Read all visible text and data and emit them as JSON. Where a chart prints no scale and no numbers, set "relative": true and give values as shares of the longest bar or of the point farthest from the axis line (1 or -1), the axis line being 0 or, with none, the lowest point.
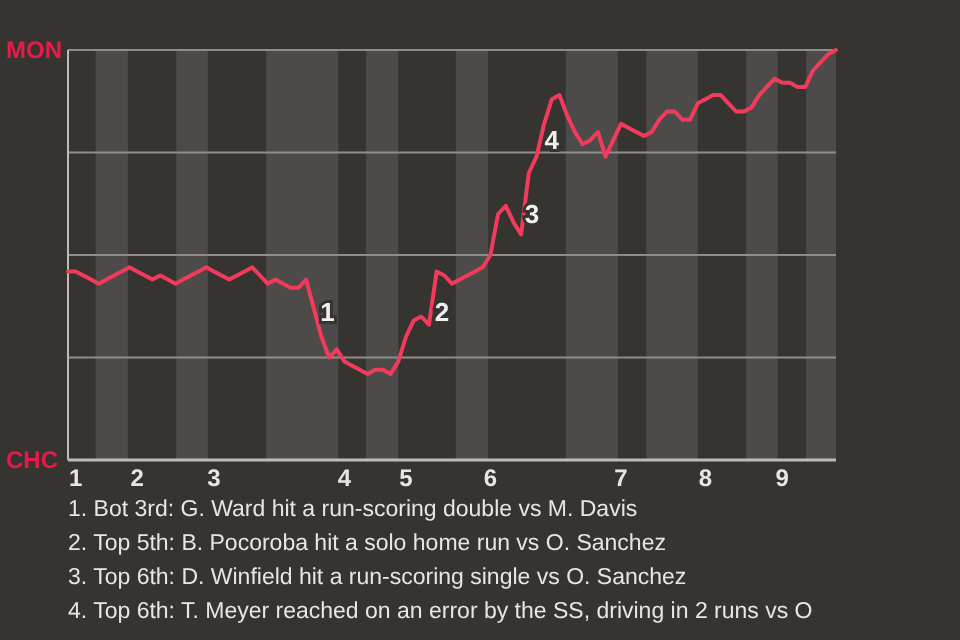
{
  "chart_data": {
    "type": "line",
    "relative": true,
    "categories": [
      null,
      "1",
      null,
      null,
      null,
      null,
      null,
      null,
      null,
      "2",
      null,
      null,
      null,
      null,
      null,
      null,
      null,
      null,
      null,
      "3",
      null,
      null,
      null,
      null,
      null,
      null,
      null,
      null,
      null,
      null,
      null,
      null,
      null,
      null,
      null,
      null,
      "4",
      null,
      null,
      null,
      null,
      null,
      null,
      null,
      "5",
      null,
      null,
      null,
      null,
      null,
      null,
      null,
      null,
      null,
      null,
      "6",
      null,
      null,
      null,
      null,
      null,
      null,
      null,
      null,
      null,
      null,
      null,
      null,
      null,
      null,
      null,
      null,
      "7",
      null,
      null,
      null,
      null,
      null,
      null,
      null,
      null,
      null,
      null,
      "8",
      null,
      null,
      null,
      null,
      null,
      null,
      null,
      null,
      null,
      "9",
      null,
      null,
      null,
      null,
      null,
      null,
      null
    ],
    "grid": "y",
    "marker": "none",
    "line_style": "solid",
    "series": [
      {
        "color": "#f23a5c",
        "values": [
          0.46,
          0.46,
          0.45,
          0.44,
          0.43,
          0.44,
          0.45,
          0.46,
          0.47,
          0.46,
          0.45,
          0.44,
          0.45,
          0.44,
          0.43,
          0.44,
          0.45,
          0.46,
          0.47,
          0.46,
          0.45,
          0.44,
          0.45,
          0.46,
          0.47,
          0.45,
          0.43,
          0.44,
          0.43,
          0.42,
          0.42,
          0.44,
          0.37,
          0.3,
          0.25,
          0.27,
          0.24,
          0.23,
          0.22,
          0.21,
          0.22,
          0.22,
          0.21,
          0.24,
          0.3,
          0.34,
          0.35,
          0.33,
          0.46,
          0.45,
          0.43,
          0.44,
          0.45,
          0.46,
          0.47,
          0.5,
          0.6,
          0.62,
          0.58,
          0.55,
          0.7,
          0.74,
          0.82,
          0.88,
          0.89,
          0.84,
          0.8,
          0.77,
          0.78,
          0.8,
          0.74,
          0.78,
          0.82,
          0.81,
          0.8,
          0.79,
          0.8,
          0.83,
          0.85,
          0.85,
          0.83,
          0.83,
          0.87,
          0.88,
          0.89,
          0.89,
          0.87,
          0.85,
          0.85,
          0.86,
          0.89,
          0.91,
          0.93,
          0.92,
          0.92,
          0.91,
          0.91,
          0.95,
          0.97,
          0.99,
          1
        ]
      }
    ],
    "annotations": [
      "MON",
      "CHC",
      "1",
      "2",
      "3",
      "4",
      "1. Bot 3rd: G. Ward hit a run-scoring double vs M. Davis",
      "2. Top 5th: B. Pocoroba hit a solo home run vs O. Sanchez",
      "3. Top 6th: D. Winfield hit a run-scoring single vs O. Sanchez",
      "4. Top 6th: T. Meyer reached on an error by the SS, driving in 2 runs vs O"
    ]
  }
}
